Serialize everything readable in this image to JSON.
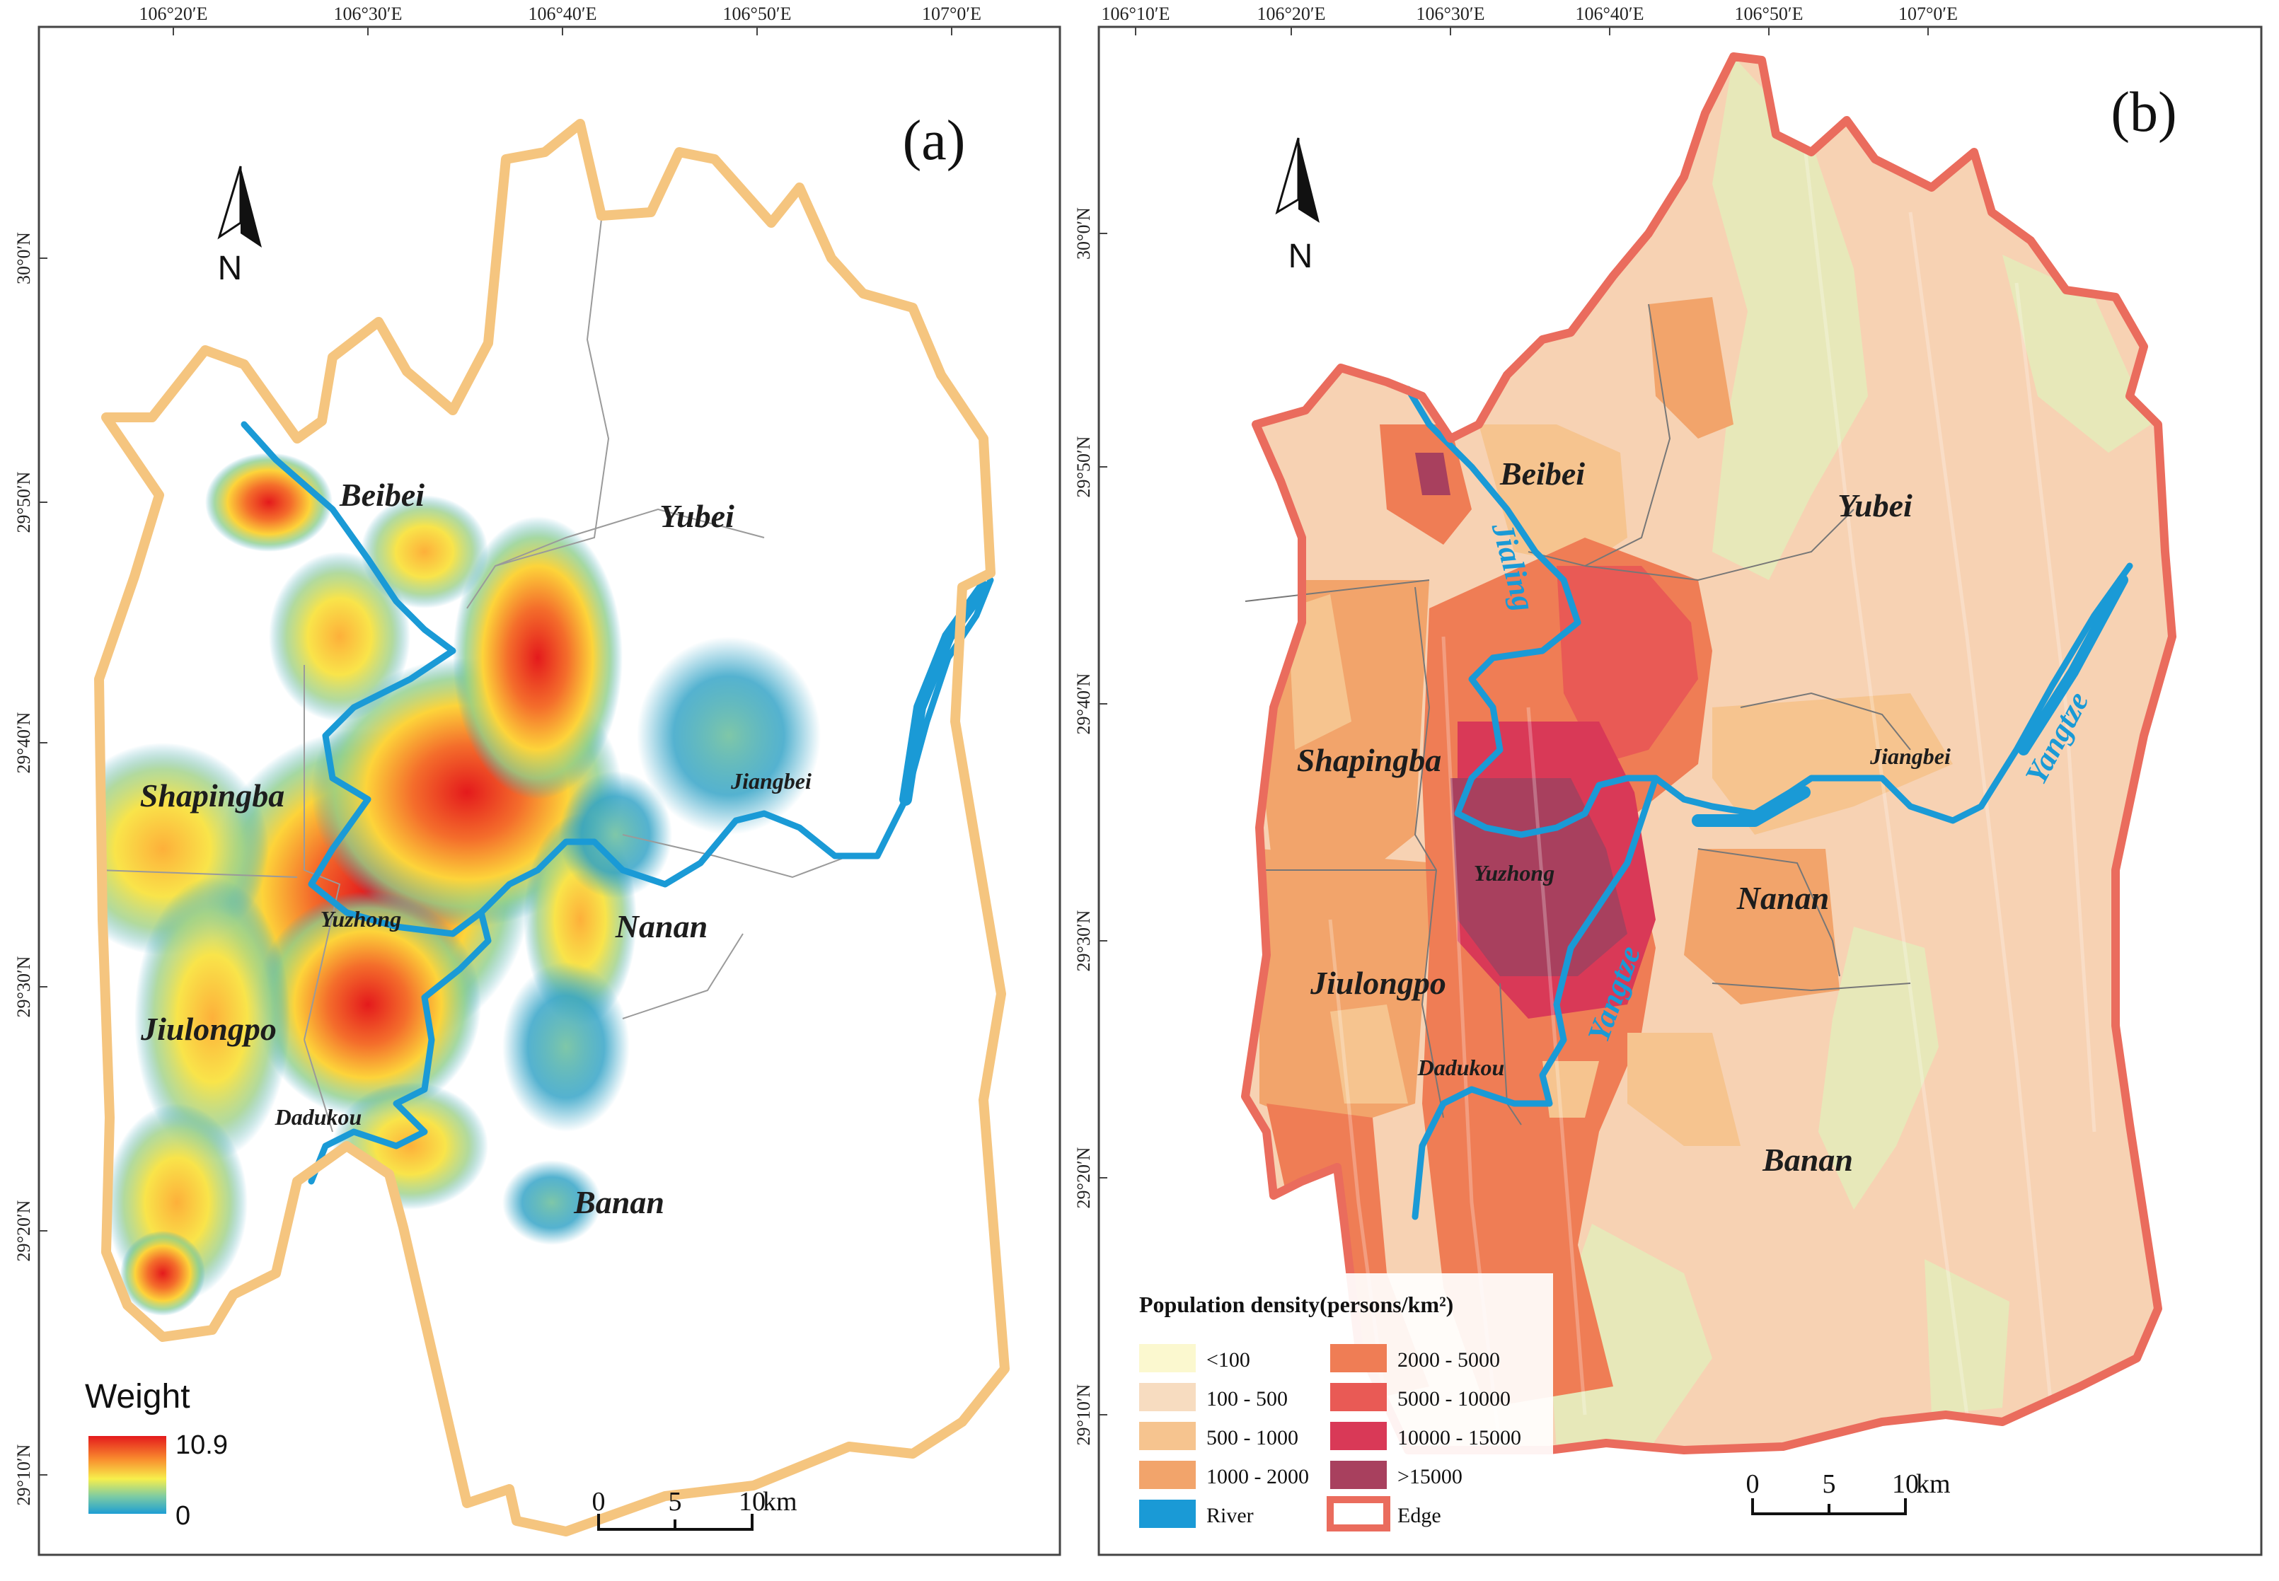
{
  "panel_a": {
    "label": "(a)",
    "lon_ticks": [
      "106°20′E",
      "106°30′E",
      "106°40′E",
      "106°50′E",
      "107°0′E"
    ],
    "lat_ticks": [
      "30°0′N",
      "29°50′N",
      "29°40′N",
      "29°30′N",
      "29°20′N",
      "29°10′N"
    ],
    "districts": [
      "Beibei",
      "Yubei",
      "Shapingba",
      "Jiangbei",
      "Yuzhong",
      "Nanan",
      "Jiulongpo",
      "Dadukou",
      "Banan"
    ],
    "north_label": "N",
    "scale": {
      "labels": [
        "0",
        "5",
        "10"
      ],
      "unit": "km"
    },
    "legend": {
      "title": "Weight",
      "max": "10.9",
      "min": "0"
    }
  },
  "panel_b": {
    "label": "(b)",
    "lon_ticks": [
      "106°10′E",
      "106°20′E",
      "106°30′E",
      "106°40′E",
      "106°50′E",
      "107°0′E"
    ],
    "lat_ticks": [
      "30°0′N",
      "29°50′N",
      "29°40′N",
      "29°30′N",
      "29°20′N",
      "29°10′N"
    ],
    "districts": [
      "Beibei",
      "Yubei",
      "Shapingba",
      "Jiangbei",
      "Yuzhong",
      "Nanan",
      "Jiulongpo",
      "Dadukou",
      "Banan"
    ],
    "rivers": [
      "Jialing",
      "Yangtze",
      "Yangtze"
    ],
    "north_label": "N",
    "scale": {
      "labels": [
        "0",
        "5",
        "10"
      ],
      "unit": "km"
    },
    "legend": {
      "title": "Population density(persons/km²)",
      "classes": [
        {
          "label": "<100",
          "color": "#fbf8cf"
        },
        {
          "label": "100 - 500",
          "color": "#f7dcc0"
        },
        {
          "label": "500 - 1000",
          "color": "#f6c48f"
        },
        {
          "label": "1000 - 2000",
          "color": "#f2a46b"
        },
        {
          "label": "2000 - 5000",
          "color": "#ef7d55"
        },
        {
          "label": "5000 - 10000",
          "color": "#e95a55"
        },
        {
          "label": "10000 - 15000",
          "color": "#d93957"
        },
        {
          "label": ">15000",
          "color": "#a8405e"
        }
      ],
      "river": {
        "label": "River",
        "color": "#1a9ad6"
      },
      "edge": {
        "label": "Edge",
        "color": "#ea6c5d"
      }
    }
  }
}
